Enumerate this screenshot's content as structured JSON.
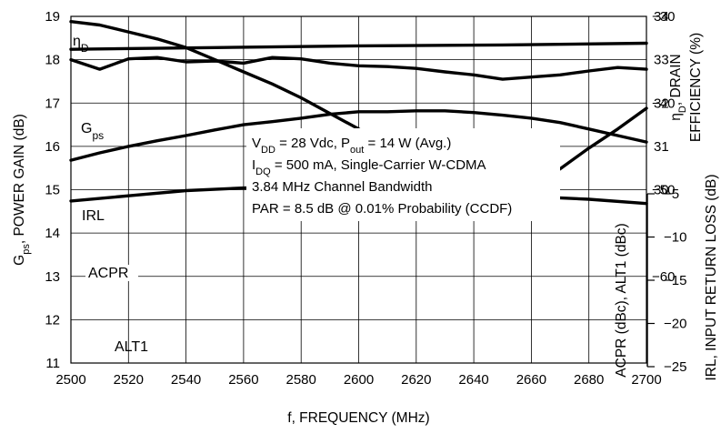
{
  "chart_data": {
    "type": "line",
    "xlabel": "f, FREQUENCY (MHz)",
    "x_ticks": [
      "2500",
      "2520",
      "2540",
      "2560",
      "2580",
      "2600",
      "2620",
      "2640",
      "2660",
      "2680",
      "2700"
    ],
    "xlim": [
      2500,
      2700
    ],
    "axes": {
      "left_gain": {
        "label_main": "G",
        "label_sub": "ps",
        "label_rest": ", POWER GAIN (dB)",
        "range": [
          11,
          19
        ],
        "ticks": [
          "11",
          "12",
          "13",
          "14",
          "15",
          "16",
          "17",
          "18",
          "19"
        ]
      },
      "right_eff": {
        "label_line1_main": "η",
        "label_line1_sub": "D",
        "label_line1_rest": ", DRAIN",
        "label_line2": "EFFICIENCY (%)",
        "range": [
          26,
          34
        ],
        "ticks": [
          "30",
          "31",
          "32",
          "33",
          "34"
        ]
      },
      "right_acpr": {
        "label": "ACPR (dBc), ALT1 (dBc)",
        "range": [
          -70,
          -30
        ],
        "ticks": [
          "-30",
          "-40",
          "-50",
          "-60"
        ]
      },
      "right_irl": {
        "label": "IRL, INPUT RETURN LOSS (dB)",
        "range": [
          -25,
          -5
        ],
        "ticks": [
          "-5",
          "-10",
          "-15",
          "-20",
          "-25"
        ]
      }
    },
    "annotation_lines": [
      {
        "parts": [
          [
            "V",
            ""
          ],
          [
            "DD",
            "sub"
          ],
          [
            " = 28 Vdc, P",
            ""
          ],
          [
            "out",
            "sub"
          ],
          [
            " = 14 W (Avg.)",
            ""
          ]
        ]
      },
      {
        "parts": [
          [
            "I",
            ""
          ],
          [
            "DQ",
            "sub"
          ],
          [
            " = 500 mA, Single-Carrier W-CDMA",
            ""
          ]
        ]
      },
      {
        "parts": [
          [
            "3.84 MHz Channel Bandwidth",
            ""
          ]
        ]
      },
      {
        "parts": [
          [
            "PAR = 8.5 dB @ 0.01% Probability (CCDF)",
            ""
          ]
        ]
      }
    ],
    "series": [
      {
        "name": "ηD",
        "label_main": "η",
        "label_sub": "D",
        "axis": "right_eff",
        "x": [
          2500,
          2510,
          2520,
          2530,
          2540,
          2550,
          2560,
          2570,
          2580,
          2590,
          2600,
          2610,
          2620,
          2630,
          2640,
          2650,
          2660,
          2670,
          2680,
          2690,
          2700
        ],
        "y": [
          33.0,
          32.78,
          33.02,
          33.05,
          32.95,
          32.97,
          32.92,
          33.05,
          33.02,
          32.92,
          32.86,
          32.84,
          32.8,
          32.72,
          32.65,
          32.55,
          32.6,
          32.65,
          32.74,
          32.82,
          32.78
        ]
      },
      {
        "name": "Gps",
        "label_main": "G",
        "label_sub": "ps",
        "axis": "left_gain",
        "x": [
          2500,
          2510,
          2520,
          2530,
          2540,
          2550,
          2560,
          2570,
          2580,
          2590,
          2600,
          2610,
          2620,
          2630,
          2640,
          2650,
          2660,
          2670,
          2680,
          2690,
          2700
        ],
        "y": [
          15.68,
          15.85,
          16.0,
          16.13,
          16.25,
          16.38,
          16.5,
          16.57,
          16.65,
          16.74,
          16.8,
          16.8,
          16.82,
          16.82,
          16.78,
          16.72,
          16.65,
          16.55,
          16.4,
          16.25,
          16.1
        ]
      },
      {
        "name": "IRL",
        "axis": "right_irl",
        "x": [
          2500,
          2510,
          2520,
          2530,
          2540,
          2550,
          2560,
          2570,
          2580,
          2590,
          2600,
          2610,
          2620,
          2630,
          2640,
          2650,
          2660,
          2670,
          2680,
          2690,
          2700
        ],
        "y": [
          -5.3,
          -5.5,
          -5.9,
          -6.3,
          -6.8,
          -7.5,
          -8.2,
          -8.9,
          -9.7,
          -10.6,
          -11.5,
          -12.6,
          -13.5,
          -14.3,
          -14.9,
          -15.1,
          -14.7,
          -13.8,
          -12.6,
          -11.5,
          -10.3
        ]
      },
      {
        "name": "ACPR",
        "axis": "right_acpr",
        "x": [
          2500,
          2550,
          2600,
          2650,
          2700
        ],
        "y": [
          -33.8,
          -33.6,
          -33.4,
          -33.3,
          -33.1
        ]
      },
      {
        "name": "ALT1",
        "axis": "right_acpr",
        "x": [
          2500,
          2520,
          2540,
          2560,
          2580,
          2600,
          2620,
          2640,
          2660,
          2680,
          2700
        ],
        "y": [
          -51.3,
          -50.7,
          -50.1,
          -49.8,
          -49.7,
          -49.8,
          -50.0,
          -50.4,
          -50.8,
          -51.1,
          -51.6
        ]
      }
    ],
    "grid": true
  }
}
